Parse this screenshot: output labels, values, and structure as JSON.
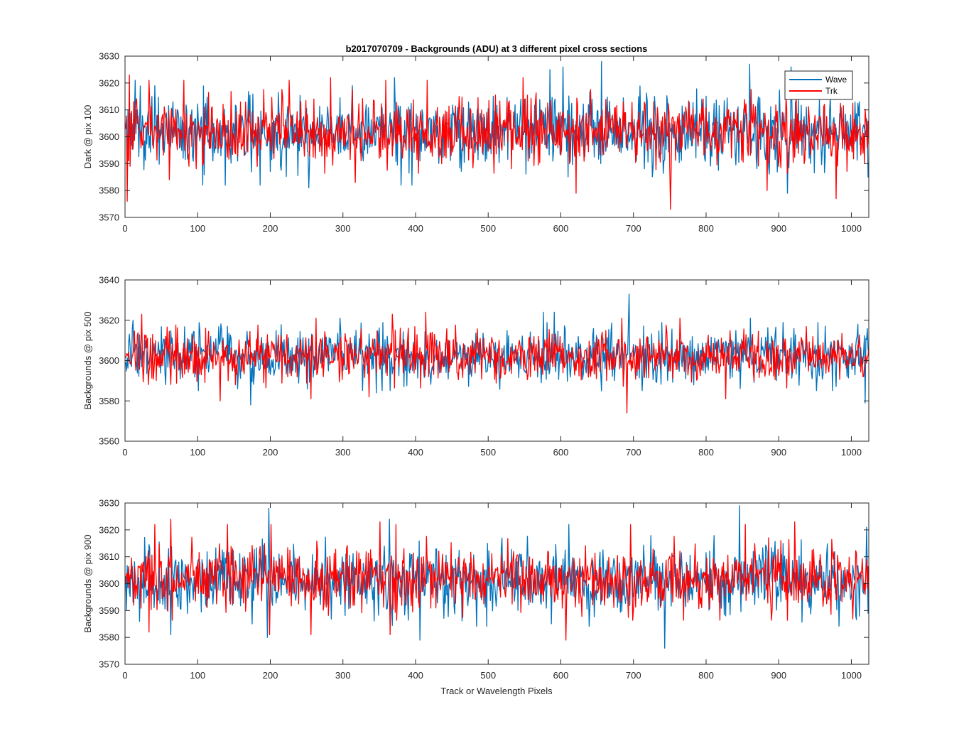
{
  "figure": {
    "title": "b2017070709 - Backgrounds (ADU) at 3 different pixel cross sections",
    "xlabel": "Track or Wavelength Pixels"
  },
  "legend": {
    "placement": "top-right",
    "entries": [
      {
        "name": "Wave",
        "color": "#0072BD"
      },
      {
        "name": "Trk",
        "color": "#FF0000"
      }
    ]
  },
  "chart_data": [
    {
      "type": "line",
      "title": "b2017070709 - Backgrounds (ADU) at 3 different pixel cross sections",
      "ylabel": "Dark @ pix 100",
      "xlabel": "",
      "xlim": [
        0,
        1024
      ],
      "ylim": [
        3570,
        3630
      ],
      "xticks": [
        0,
        100,
        200,
        300,
        400,
        500,
        600,
        700,
        800,
        900,
        1000
      ],
      "yticks": [
        3570,
        3580,
        3590,
        3600,
        3610,
        3620,
        3630
      ],
      "grid": false,
      "series": [
        {
          "name": "Wave",
          "color": "#0072BD",
          "n": 1024,
          "mean": 3602,
          "std": 6.5,
          "peaks": [
            [
              13,
              3621
            ],
            [
              40,
              3619
            ],
            [
              312,
              3619
            ],
            [
              370,
              3622
            ],
            [
              584,
              3625
            ],
            [
              602,
              3626
            ],
            [
              655,
              3628
            ],
            [
              859,
              3627
            ],
            [
              916,
              3626
            ]
          ],
          "dips": [
            [
              106,
              3582
            ],
            [
              137,
              3582
            ],
            [
              185,
              3582
            ],
            [
              252,
              3581
            ],
            [
              379,
              3582
            ],
            [
              394,
              3582
            ],
            [
              911,
              3579
            ],
            [
              1022,
              3585
            ]
          ]
        },
        {
          "name": "Trk",
          "color": "#FF0000",
          "n": 1024,
          "mean": 3602,
          "std": 6,
          "peaks": [
            [
              5,
              3623
            ],
            [
              32,
              3621
            ],
            [
              80,
              3621
            ],
            [
              225,
              3621
            ],
            [
              282,
              3622
            ],
            [
              358,
              3621
            ],
            [
              415,
              3621
            ],
            [
              547,
              3622
            ]
          ],
          "dips": [
            [
              2,
              3576
            ],
            [
              60,
              3584
            ],
            [
              316,
              3583
            ],
            [
              620,
              3579
            ],
            [
              750,
              3573
            ],
            [
              883,
              3580
            ],
            [
              978,
              3577
            ]
          ]
        }
      ]
    },
    {
      "type": "line",
      "ylabel": "Backgrounds @ pix 500",
      "xlabel": "",
      "xlim": [
        0,
        1024
      ],
      "ylim": [
        3560,
        3640
      ],
      "xticks": [
        0,
        100,
        200,
        300,
        400,
        500,
        600,
        700,
        800,
        900,
        1000
      ],
      "yticks": [
        3560,
        3580,
        3600,
        3620,
        3640
      ],
      "grid": false,
      "series": [
        {
          "name": "Wave",
          "color": "#0072BD",
          "n": 1024,
          "mean": 3602,
          "std": 6.5,
          "peaks": [
            [
              10,
              3620
            ],
            [
              295,
              3621
            ],
            [
              575,
              3624
            ],
            [
              590,
              3624
            ],
            [
              693,
              3633
            ],
            [
              860,
              3621
            ],
            [
              905,
              3619
            ],
            [
              1008,
              3618
            ]
          ],
          "dips": [
            [
              172,
              3578
            ],
            [
              345,
              3584
            ],
            [
              655,
              3585
            ],
            [
              1018,
              3579
            ]
          ]
        },
        {
          "name": "Trk",
          "color": "#FF0000",
          "n": 1024,
          "mean": 3602,
          "std": 6,
          "peaks": [
            [
              22,
              3623
            ],
            [
              262,
              3621
            ],
            [
              367,
              3623
            ],
            [
              413,
              3624
            ],
            [
              683,
              3621
            ],
            [
              763,
              3621
            ]
          ],
          "dips": [
            [
              130,
              3580
            ],
            [
              255,
              3581
            ],
            [
              335,
              3582
            ],
            [
              690,
              3574
            ],
            [
              826,
              3581
            ]
          ]
        }
      ]
    },
    {
      "type": "line",
      "ylabel": "Backgrounds @ pix 900",
      "xlabel": "Track or Wavelength Pixels",
      "xlim": [
        0,
        1024
      ],
      "ylim": [
        3570,
        3630
      ],
      "xticks": [
        0,
        100,
        200,
        300,
        400,
        500,
        600,
        700,
        800,
        900,
        1000
      ],
      "yticks": [
        3570,
        3580,
        3590,
        3600,
        3610,
        3620,
        3630
      ],
      "grid": false,
      "series": [
        {
          "name": "Wave",
          "color": "#0072BD",
          "n": 1024,
          "mean": 3601,
          "std": 6.5,
          "peaks": [
            [
              197,
              3628
            ],
            [
              363,
              3624
            ],
            [
              610,
              3622
            ],
            [
              845,
              3629
            ],
            [
              1020,
              3621
            ]
          ],
          "dips": [
            [
              62,
              3581
            ],
            [
              195,
              3580
            ],
            [
              405,
              3579
            ],
            [
              742,
              3576
            ],
            [
              1022,
              3589
            ]
          ]
        },
        {
          "name": "Trk",
          "color": "#FF0000",
          "n": 1024,
          "mean": 3602,
          "std": 6,
          "peaks": [
            [
              40,
              3622
            ],
            [
              62,
              3624
            ],
            [
              140,
              3622
            ],
            [
              200,
              3622
            ],
            [
              350,
              3623
            ],
            [
              372,
              3622
            ],
            [
              695,
              3622
            ],
            [
              853,
              3622
            ],
            [
              921,
              3623
            ]
          ],
          "dips": [
            [
              32,
              3582
            ],
            [
              198,
              3581
            ],
            [
              255,
              3581
            ],
            [
              364,
              3581
            ],
            [
              606,
              3579
            ]
          ]
        }
      ]
    }
  ]
}
